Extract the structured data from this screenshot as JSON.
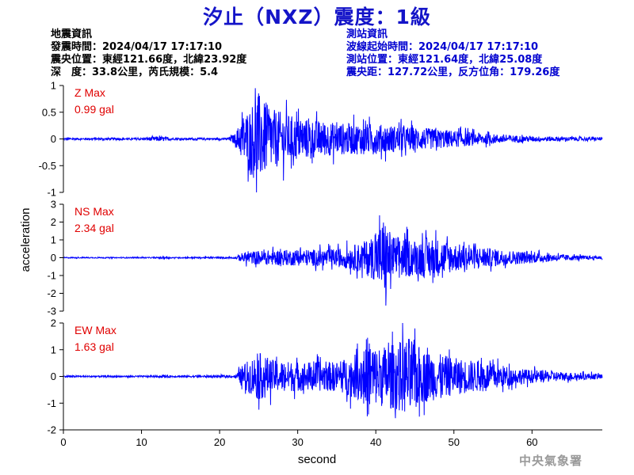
{
  "title": "汐止（NXZ）震度：1級",
  "earthquake_info": {
    "header": "地震資訊",
    "origin_time": "發震時間：2024/04/17 17:17:10",
    "epicenter": "震央位置：東經121.66度，北緯23.92度",
    "depth_magnitude": "深　度：33.8公里，芮氏規模：5.4"
  },
  "station_info": {
    "header": "測站資訊",
    "wave_start": "波線起始時間：2024/04/17 17:17:10",
    "station_location": "測站位置：東經121.64度，北緯25.08度",
    "distance_azimuth": "震央距：127.72公里，反方位角：179.26度"
  },
  "watermark": "中央氣象署",
  "colors": {
    "title": "#1414c8",
    "trace": "#0000ff",
    "max_label": "#e00000",
    "station_text": "#0000d0"
  },
  "chart_data": {
    "type": "line",
    "xlabel": "second",
    "ylabel": "acceleration",
    "xlim": [
      0,
      69
    ],
    "xticks": [
      0,
      10,
      20,
      30,
      40,
      50,
      60
    ],
    "grid": false,
    "panels": [
      {
        "component": "Z",
        "max_label": "Z Max",
        "max_value": "0.99 gal",
        "ylim": [
          -1,
          1
        ],
        "yticks": [
          -1,
          -0.5,
          0,
          0.5,
          1
        ],
        "ytick_labels": [
          "-1",
          "-0.5",
          "0",
          "0.5",
          "1"
        ],
        "envelope": [
          [
            0,
            0.02
          ],
          [
            10,
            0.02
          ],
          [
            12,
            0.05
          ],
          [
            14,
            0.02
          ],
          [
            21,
            0.02
          ],
          [
            22,
            0.1
          ],
          [
            23,
            0.45
          ],
          [
            24,
            0.6
          ],
          [
            24.8,
            0.95
          ],
          [
            25.5,
            0.7
          ],
          [
            27,
            0.55
          ],
          [
            30,
            0.4
          ],
          [
            35,
            0.3
          ],
          [
            40,
            0.28
          ],
          [
            45,
            0.22
          ],
          [
            50,
            0.16
          ],
          [
            55,
            0.09
          ],
          [
            60,
            0.05
          ],
          [
            65,
            0.04
          ],
          [
            69,
            0.03
          ]
        ]
      },
      {
        "component": "NS",
        "max_label": "NS Max",
        "max_value": "2.34 gal",
        "ylim": [
          -3,
          3
        ],
        "yticks": [
          -3,
          -2,
          -1,
          0,
          1,
          2,
          3
        ],
        "ytick_labels": [
          "-3",
          "-2",
          "-1",
          "0",
          "1",
          "2",
          "3"
        ],
        "envelope": [
          [
            0,
            0.03
          ],
          [
            12,
            0.03
          ],
          [
            13,
            0.08
          ],
          [
            14,
            0.03
          ],
          [
            22,
            0.05
          ],
          [
            23,
            0.3
          ],
          [
            25,
            0.4
          ],
          [
            30,
            0.45
          ],
          [
            35,
            0.5
          ],
          [
            38,
            0.8
          ],
          [
            40,
            1.3
          ],
          [
            41,
            2.3
          ],
          [
            42,
            1.3
          ],
          [
            45,
            1.0
          ],
          [
            47,
            1.2
          ],
          [
            50,
            0.8
          ],
          [
            55,
            0.5
          ],
          [
            60,
            0.3
          ],
          [
            65,
            0.15
          ],
          [
            69,
            0.08
          ]
        ]
      },
      {
        "component": "EW",
        "max_label": "EW Max",
        "max_value": "1.63 gal",
        "ylim": [
          -2,
          2
        ],
        "yticks": [
          -2,
          -1,
          0,
          1,
          2
        ],
        "ytick_labels": [
          "-2",
          "-1",
          "0",
          "1",
          "2"
        ],
        "envelope": [
          [
            0,
            0.03
          ],
          [
            12,
            0.03
          ],
          [
            13,
            0.06
          ],
          [
            14,
            0.03
          ],
          [
            22,
            0.05
          ],
          [
            23,
            0.45
          ],
          [
            25,
            0.9
          ],
          [
            27,
            0.6
          ],
          [
            30,
            0.55
          ],
          [
            35,
            0.55
          ],
          [
            38,
            0.9
          ],
          [
            39,
            1.6
          ],
          [
            40,
            1.1
          ],
          [
            42,
            1.2
          ],
          [
            44.5,
            1.5
          ],
          [
            46,
            1.0
          ],
          [
            50,
            0.7
          ],
          [
            55,
            0.5
          ],
          [
            58,
            0.3
          ],
          [
            60,
            0.25
          ],
          [
            65,
            0.15
          ],
          [
            69,
            0.1
          ]
        ]
      }
    ]
  }
}
